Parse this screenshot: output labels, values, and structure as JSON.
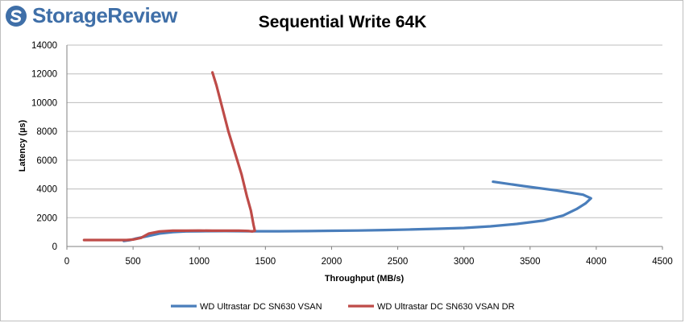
{
  "brand": {
    "name": "StorageReview",
    "logo_color": "#3f6fa8"
  },
  "chart_data": {
    "type": "line",
    "title": "Sequential Write 64K",
    "xlabel": "Throughput (MB/s)",
    "ylabel": "Latency (µs)",
    "xlim": [
      0,
      4500
    ],
    "ylim": [
      0,
      14000
    ],
    "x_ticks": [
      0,
      500,
      1000,
      1500,
      2000,
      2500,
      3000,
      3500,
      4000,
      4500
    ],
    "y_ticks": [
      0,
      2000,
      4000,
      6000,
      8000,
      10000,
      12000,
      14000
    ],
    "grid": "horizontal",
    "legend_position": "bottom",
    "series": [
      {
        "name": "WD Ultrastar DC SN630 VSAN",
        "color": "#4a7ebb",
        "points": [
          [
            430,
            380
          ],
          [
            480,
            450
          ],
          [
            520,
            550
          ],
          [
            600,
            700
          ],
          [
            700,
            900
          ],
          [
            800,
            1000
          ],
          [
            900,
            1050
          ],
          [
            1000,
            1060
          ],
          [
            1200,
            1070
          ],
          [
            1400,
            1060
          ],
          [
            1600,
            1060
          ],
          [
            1800,
            1070
          ],
          [
            2000,
            1090
          ],
          [
            2200,
            1110
          ],
          [
            2400,
            1140
          ],
          [
            2600,
            1180
          ],
          [
            2800,
            1230
          ],
          [
            3000,
            1290
          ],
          [
            3200,
            1400
          ],
          [
            3400,
            1570
          ],
          [
            3600,
            1800
          ],
          [
            3750,
            2150
          ],
          [
            3850,
            2600
          ],
          [
            3920,
            3000
          ],
          [
            3960,
            3350
          ],
          [
            3900,
            3600
          ],
          [
            3700,
            3900
          ],
          [
            3450,
            4200
          ],
          [
            3220,
            4500
          ]
        ]
      },
      {
        "name": "WD Ultrastar DC SN630 VSAN DR",
        "color": "#be4b48",
        "points": [
          [
            130,
            450
          ],
          [
            200,
            450
          ],
          [
            300,
            450
          ],
          [
            380,
            450
          ],
          [
            450,
            450
          ],
          [
            500,
            480
          ],
          [
            560,
            600
          ],
          [
            620,
            900
          ],
          [
            700,
            1050
          ],
          [
            800,
            1100
          ],
          [
            900,
            1100
          ],
          [
            1000,
            1110
          ],
          [
            1100,
            1100
          ],
          [
            1200,
            1100
          ],
          [
            1300,
            1100
          ],
          [
            1370,
            1080
          ],
          [
            1400,
            1050
          ],
          [
            1420,
            1100
          ],
          [
            1410,
            1500
          ],
          [
            1390,
            2500
          ],
          [
            1360,
            3500
          ],
          [
            1320,
            5000
          ],
          [
            1270,
            6500
          ],
          [
            1220,
            8000
          ],
          [
            1170,
            9800
          ],
          [
            1130,
            11200
          ],
          [
            1100,
            12100
          ]
        ]
      }
    ]
  }
}
